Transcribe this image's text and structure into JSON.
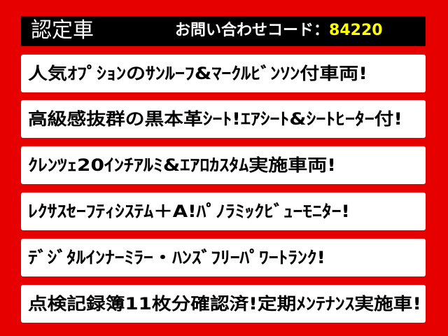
{
  "header": {
    "title": "認定車",
    "inquiry_label": "お問い合わせコード：",
    "inquiry_code": "84220"
  },
  "features": [
    "人気ｵﾌﾟｼｮﾝのｻﾝﾙｰﾌ&ﾏｰｸﾙﾋﾞﾝｿﾝ付車両!",
    "高級感抜群の黒本革ｼｰﾄ!ｴｱｼｰﾄ&ｼｰﾄﾋｰﾀｰ付!",
    "ｸﾚﾝﾂｪ20ｲﾝﾁｱﾙﾐ&ｴｱﾛｶｽﾀﾑ実施車両!",
    "ﾚｸｻｽｾｰﾌﾃｨｼｽﾃﾑ＋A!ﾊﾟﾉﾗﾐｯｸﾋﾞｭｰﾓﾆﾀｰ!",
    "ﾃﾞｼﾞﾀﾙｲﾝﾅｰﾐﾗｰ・ﾊﾝｽﾞﾌﾘｰﾊﾟﾜｰﾄﾗﾝｸ!",
    "点検記録簿11枚分確認済!定期ﾒﾝﾃﾅﾝｽ実施車!"
  ],
  "colors": {
    "background": "#e60000",
    "header": "#000000",
    "code": "#ffff00"
  }
}
